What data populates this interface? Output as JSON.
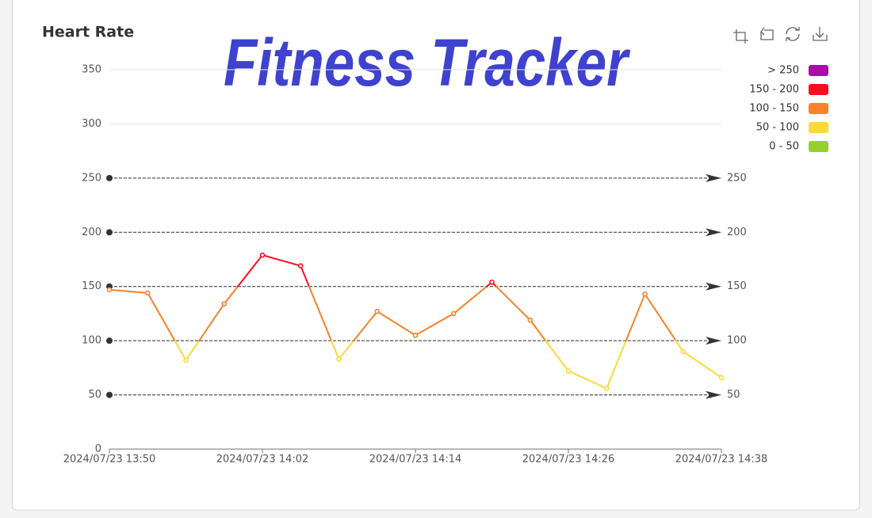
{
  "chart_data": {
    "type": "line",
    "title": "Heart Rate",
    "banner": "Fitness Tracker",
    "x": [
      "2024/07/23 13:50",
      "2024/07/23 13:53",
      "2024/07/23 13:56",
      "2024/07/23 13:59",
      "2024/07/23 14:02",
      "2024/07/23 14:05",
      "2024/07/23 14:08",
      "2024/07/23 14:11",
      "2024/07/23 14:14",
      "2024/07/23 14:17",
      "2024/07/23 14:20",
      "2024/07/23 14:23",
      "2024/07/23 14:26",
      "2024/07/23 14:29",
      "2024/07/23 14:32",
      "2024/07/23 14:35",
      "2024/07/23 14:38"
    ],
    "values": [
      147,
      144,
      82,
      134,
      179,
      169,
      83,
      127,
      105,
      125,
      154,
      119,
      72,
      56,
      143,
      90,
      66
    ],
    "xlim": [
      "2024/07/23 13:50",
      "2024/07/23 14:38"
    ],
    "xticks": [
      "2024/07/23 13:50",
      "2024/07/23 14:02",
      "2024/07/23 14:14",
      "2024/07/23 14:26",
      "2024/07/23 14:38"
    ],
    "ylim": [
      0,
      350
    ],
    "yticks": [
      0,
      50,
      100,
      150,
      200,
      250,
      300,
      350
    ],
    "grid": true,
    "mark_lines": [
      50,
      100,
      150,
      200,
      250
    ],
    "legend_position": "right",
    "pieces": [
      {
        "label": "> 250",
        "min": 250,
        "color": "#a80ea6"
      },
      {
        "label": "150 - 200",
        "min": 150,
        "max": 200,
        "color": "#ff0b1f"
      },
      {
        "label": "100 - 150",
        "min": 100,
        "max": 150,
        "color": "#f7822a"
      },
      {
        "label": "50 - 100",
        "min": 50,
        "max": 100,
        "color": "#fbd93a"
      },
      {
        "label": "0 - 50",
        "min": 0,
        "max": 50,
        "color": "#94d12c"
      }
    ]
  }
}
